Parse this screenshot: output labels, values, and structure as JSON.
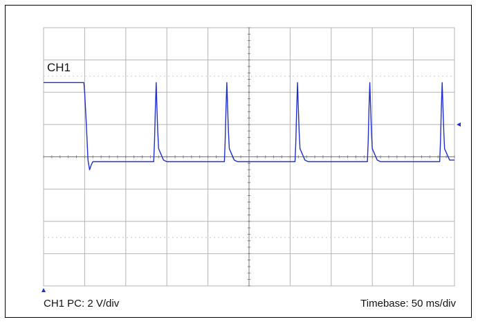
{
  "chart_data": {
    "type": "line",
    "channel_label": "CH1",
    "vertical_scale_label": "CH1 PC: 2 V/div",
    "timebase_label": "Timebase: 50 ms/div",
    "xlim": [
      0,
      500
    ],
    "ylim": [
      -8,
      8
    ],
    "x_unit": "ms",
    "y_unit": "V",
    "grid": true,
    "grid_divisions": {
      "x": 10,
      "y": 8
    },
    "trigger_time_ms": 0,
    "colors": {
      "trace": "#1f2fd0",
      "grid": "#b4b4b4",
      "axis": "#7a7a7a",
      "marker": "#1f2fd0"
    },
    "series": [
      {
        "x": [
          0,
          48,
          49,
          50,
          52,
          54,
          56,
          58,
          60,
          62,
          64,
          130,
          134,
          135,
          136,
          137,
          138,
          139,
          140,
          146,
          150,
          200,
          220,
          221,
          222,
          223,
          224,
          225,
          226,
          232,
          236,
          300,
          306,
          307,
          308,
          309,
          310,
          311,
          312,
          318,
          322,
          390,
          394,
          395,
          396,
          397,
          398,
          399,
          400,
          406,
          410,
          480,
          482,
          483,
          484,
          485,
          486,
          487,
          488,
          494,
          500
        ],
        "y": [
          4.6,
          4.6,
          4.6,
          4.0,
          2.0,
          -0.2,
          -0.8,
          -0.5,
          -0.3,
          -0.3,
          -0.3,
          -0.3,
          -0.3,
          1.0,
          3.0,
          4.6,
          3.0,
          1.5,
          0.5,
          -0.2,
          -0.3,
          -0.3,
          -0.3,
          1.0,
          3.0,
          4.6,
          3.0,
          1.5,
          0.5,
          -0.2,
          -0.3,
          -0.3,
          -0.3,
          1.0,
          3.0,
          4.6,
          3.0,
          1.5,
          0.5,
          -0.2,
          -0.3,
          -0.3,
          -0.3,
          1.0,
          3.0,
          4.6,
          3.0,
          1.5,
          0.5,
          -0.2,
          -0.3,
          -0.3,
          -0.3,
          1.0,
          3.0,
          4.6,
          3.0,
          1.5,
          0.5,
          -0.2,
          -0.2
        ]
      }
    ]
  }
}
